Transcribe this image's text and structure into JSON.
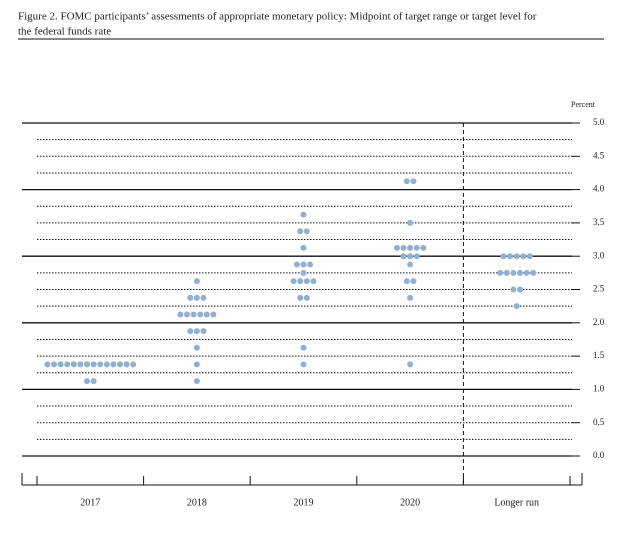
{
  "chart_data": {
    "type": "dot",
    "title": [
      "Figure 2. FOMC participants’ assessments of appropriate monetary policy: Midpoint of target range or target level for",
      "the federal funds rate"
    ],
    "y_axis_label": "Percent",
    "categories": [
      "2017",
      "2018",
      "2019",
      "2020",
      "Longer run"
    ],
    "values": [
      [
        1.375,
        1.375,
        1.375,
        1.375,
        1.375,
        1.375,
        1.375,
        1.375,
        1.375,
        1.375,
        1.375,
        1.375,
        1.375,
        1.375,
        1.125,
        1.125
      ],
      [
        2.625,
        2.375,
        2.375,
        2.375,
        2.125,
        2.125,
        2.125,
        2.125,
        2.125,
        2.125,
        1.875,
        1.875,
        1.875,
        1.625,
        1.375,
        1.125
      ],
      [
        3.625,
        3.375,
        3.375,
        3.125,
        2.875,
        2.875,
        2.875,
        2.75,
        2.625,
        2.625,
        2.625,
        2.625,
        2.375,
        2.375,
        1.625,
        1.375
      ],
      [
        4.125,
        4.125,
        3.5,
        3.125,
        3.125,
        3.125,
        3.125,
        3.125,
        3.0,
        3.0,
        3.0,
        2.875,
        2.625,
        2.625,
        2.375,
        1.375
      ],
      [
        3.0,
        3.0,
        3.0,
        3.0,
        3.0,
        2.75,
        2.75,
        2.75,
        2.75,
        2.75,
        2.75,
        2.5,
        2.5,
        2.25
      ]
    ],
    "color": "#93afd0",
    "ylim": [
      0,
      5
    ],
    "yticks": [
      {
        "value": 0,
        "label": "0.0"
      },
      {
        "value": 0.5,
        "label": "0.5"
      },
      {
        "value": 1,
        "label": "1.0"
      },
      {
        "value": 1.5,
        "label": "1.5"
      },
      {
        "value": 2,
        "label": "2.0"
      },
      {
        "value": 2.5,
        "label": "2.5"
      },
      {
        "value": 3,
        "label": "3.0"
      },
      {
        "value": 3.5,
        "label": "3.5"
      },
      {
        "value": 4,
        "label": "4.0"
      },
      {
        "value": 4.5,
        "label": "4.5"
      },
      {
        "value": 5,
        "label": "5.0"
      }
    ],
    "grid_lines": [
      0,
      0.25,
      0.5,
      0.75,
      1,
      1.25,
      1.5,
      1.75,
      2,
      2.25,
      2.5,
      2.75,
      3,
      3.25,
      3.5,
      3.75,
      4,
      4.25,
      4.5,
      4.75,
      5
    ]
  }
}
